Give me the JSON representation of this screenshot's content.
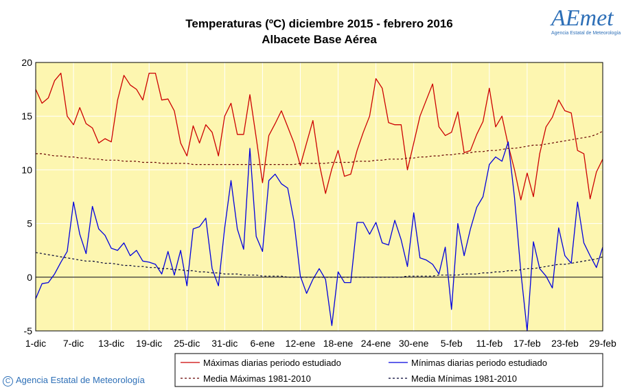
{
  "chart_data": {
    "type": "line",
    "title": "Temperaturas (ºC) diciembre 2015 - febrero 2016",
    "subtitle": "Albacete Base Aérea",
    "ylim": [
      -5,
      20
    ],
    "yticks": [
      -5,
      0,
      5,
      10,
      15,
      20
    ],
    "xtick_labels": [
      "1-dic",
      "7-dic",
      "13-dic",
      "19-dic",
      "25-dic",
      "31-dic",
      "6-ene",
      "12-ene",
      "18-ene",
      "24-ene",
      "30-ene",
      "5-feb",
      "11-feb",
      "17-feb",
      "23-feb",
      "29-feb"
    ],
    "xtick_positions": [
      0,
      6,
      12,
      18,
      24,
      30,
      36,
      42,
      48,
      54,
      60,
      66,
      72,
      78,
      84,
      90
    ],
    "n_days": 91,
    "grid": true,
    "legend_placement": "bottom",
    "series": [
      {
        "name": "Máximas diarias periodo estudiado",
        "color": "#cc0000",
        "style": "solid",
        "values": [
          17.5,
          16.2,
          16.7,
          18.3,
          19.0,
          15.0,
          14.2,
          15.8,
          14.3,
          13.9,
          12.5,
          12.9,
          12.6,
          16.5,
          18.8,
          17.9,
          17.5,
          16.5,
          19.0,
          19.0,
          16.5,
          16.6,
          15.5,
          12.5,
          11.3,
          14.1,
          12.5,
          14.2,
          13.5,
          11.3,
          15.0,
          16.2,
          13.3,
          13.3,
          17.0,
          13.0,
          8.8,
          13.2,
          14.3,
          15.5,
          14.0,
          12.5,
          10.4,
          12.5,
          14.6,
          10.6,
          7.8,
          10.1,
          11.8,
          9.4,
          9.6,
          11.8,
          13.5,
          15.0,
          18.5,
          17.6,
          14.4,
          14.2,
          14.2,
          10.0,
          12.5,
          15.0,
          16.5,
          18.0,
          14.0,
          13.2,
          13.5,
          15.4,
          11.6,
          11.8,
          13.3,
          14.5,
          17.6,
          14.0,
          15.0,
          12.3,
          10.0,
          7.2,
          9.7,
          7.5,
          11.5,
          14.0,
          14.9,
          16.5,
          15.5,
          15.3,
          11.8,
          11.5,
          7.3,
          9.8,
          11.0
        ]
      },
      {
        "name": "Mínimas diarias periodo estudiado",
        "color": "#0000dd",
        "style": "solid",
        "values": [
          -2.0,
          -0.6,
          -0.5,
          0.3,
          1.4,
          2.4,
          7.0,
          4.0,
          2.2,
          6.6,
          4.5,
          3.9,
          2.7,
          2.5,
          3.2,
          2.0,
          2.5,
          1.5,
          1.4,
          1.2,
          0.3,
          2.4,
          0.2,
          2.5,
          -0.8,
          4.5,
          4.7,
          5.5,
          0.8,
          -0.8,
          4.6,
          9.0,
          4.5,
          2.6,
          12.0,
          3.8,
          2.4,
          9.0,
          9.6,
          8.7,
          8.3,
          5.2,
          0.1,
          -1.5,
          -0.2,
          0.8,
          -0.2,
          -4.5,
          0.5,
          -0.5,
          -0.5,
          5.1,
          5.1,
          4.0,
          5.1,
          3.2,
          3.0,
          5.3,
          3.5,
          1.0,
          6.0,
          1.8,
          1.6,
          1.2,
          0.3,
          2.8,
          -3.0,
          5.0,
          2.0,
          4.5,
          6.5,
          7.5,
          10.5,
          11.2,
          10.8,
          12.6,
          7.4,
          0.5,
          -5.0,
          3.3,
          0.8,
          0.1,
          -1.0,
          4.6,
          2.0,
          1.3,
          7.0,
          3.2,
          2.0,
          0.9,
          2.8
        ]
      },
      {
        "name": "Media Máximas 1981-2010",
        "color": "#660000",
        "style": "dashed",
        "values": [
          11.5,
          11.5,
          11.4,
          11.3,
          11.3,
          11.2,
          11.2,
          11.1,
          11.1,
          11.0,
          11.0,
          10.9,
          10.9,
          10.9,
          10.8,
          10.8,
          10.8,
          10.7,
          10.7,
          10.7,
          10.6,
          10.6,
          10.6,
          10.6,
          10.6,
          10.5,
          10.5,
          10.5,
          10.5,
          10.5,
          10.5,
          10.5,
          10.5,
          10.5,
          10.5,
          10.5,
          10.5,
          10.5,
          10.5,
          10.5,
          10.5,
          10.5,
          10.6,
          10.6,
          10.6,
          10.6,
          10.6,
          10.7,
          10.7,
          10.7,
          10.7,
          10.8,
          10.8,
          10.8,
          10.9,
          10.9,
          11.0,
          11.0,
          11.0,
          11.1,
          11.1,
          11.2,
          11.2,
          11.3,
          11.3,
          11.4,
          11.4,
          11.5,
          11.5,
          11.6,
          11.7,
          11.7,
          11.8,
          11.8,
          11.9,
          12.0,
          12.0,
          12.1,
          12.2,
          12.3,
          12.3,
          12.4,
          12.5,
          12.6,
          12.7,
          12.8,
          12.9,
          13.0,
          13.1,
          13.3,
          13.6
        ]
      },
      {
        "name": "Media Mínimas 1981-2010",
        "color": "#000033",
        "style": "dashed",
        "values": [
          2.3,
          2.2,
          2.1,
          2.0,
          1.9,
          1.8,
          1.7,
          1.6,
          1.5,
          1.5,
          1.4,
          1.3,
          1.3,
          1.2,
          1.1,
          1.1,
          1.0,
          1.0,
          0.9,
          0.9,
          0.8,
          0.8,
          0.7,
          0.7,
          0.6,
          0.6,
          0.5,
          0.5,
          0.4,
          0.4,
          0.3,
          0.3,
          0.3,
          0.2,
          0.2,
          0.2,
          0.1,
          0.1,
          0.1,
          0.1,
          0.0,
          0.0,
          0.0,
          0.0,
          0.0,
          0.0,
          0.0,
          0.0,
          0.0,
          0.0,
          0.0,
          0.0,
          0.0,
          0.0,
          0.0,
          0.0,
          0.0,
          0.0,
          0.0,
          0.1,
          0.1,
          0.1,
          0.1,
          0.1,
          0.2,
          0.2,
          0.2,
          0.2,
          0.3,
          0.3,
          0.3,
          0.4,
          0.4,
          0.5,
          0.5,
          0.6,
          0.6,
          0.7,
          0.8,
          0.8,
          0.9,
          1.0,
          1.1,
          1.2,
          1.2,
          1.3,
          1.4,
          1.5,
          1.6,
          1.7,
          1.9
        ]
      }
    ]
  },
  "logo": {
    "text": "AEmet",
    "subtitle": "Agencia Estatal de Meteorología"
  },
  "footer": {
    "copyright_symbol": "C",
    "copyright_text": "Agencia Estatal de Meteorología"
  },
  "colors": {
    "plot_background": "#fdf6b0",
    "grid": "#ffffff",
    "zero_line": "#000000",
    "brand": "#2d6fb7"
  }
}
